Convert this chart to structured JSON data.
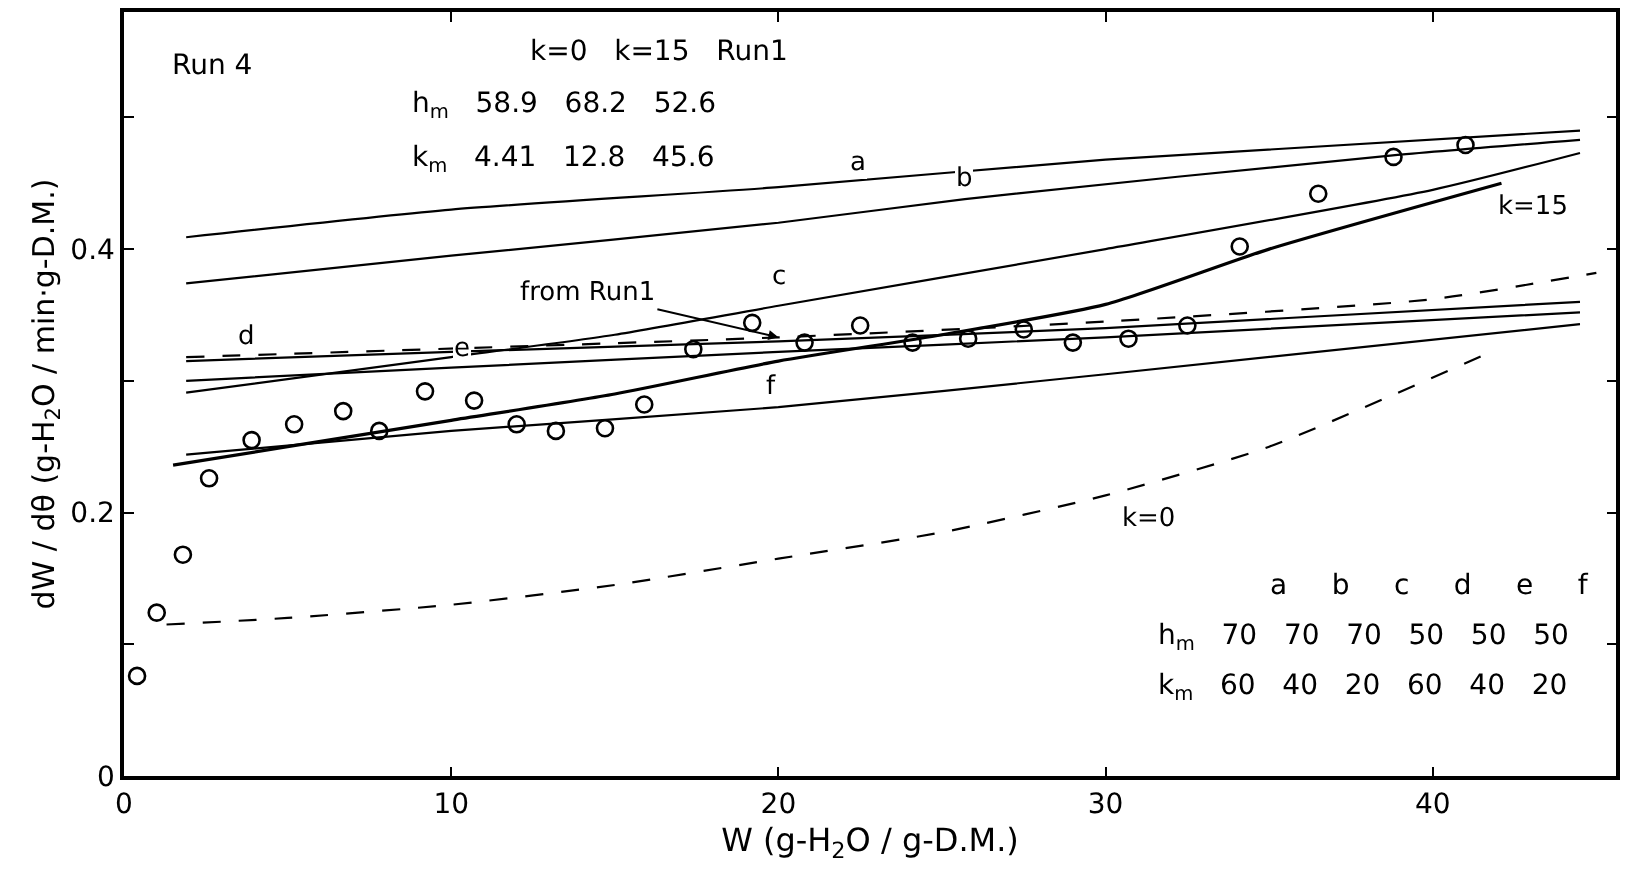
{
  "chart_data": {
    "type": "line",
    "xlabel": "W (g-H$_{2}$O / g-D.M.)",
    "ylabel": "dW / dθ (g-H$_{2}$O / min·g-D.M.)",
    "xlim": [
      0,
      45.6
    ],
    "ylim": [
      0,
      0.58
    ],
    "xticks": [
      0,
      10,
      20,
      30,
      40
    ],
    "yticks": [
      0,
      {
        "value": 0.1,
        "label": null
      },
      0.2,
      {
        "value": 0.3,
        "label": null
      },
      0.4,
      {
        "value": 0.5,
        "label": null
      }
    ],
    "legend": false,
    "series": [
      {
        "name": "a",
        "color": "#000000",
        "line_style": "solid",
        "marker": "none",
        "x": [
          1.9,
          10,
          20,
          30,
          44.5
        ],
        "values": [
          0.409,
          0.43,
          0.447,
          0.468,
          0.49
        ]
      },
      {
        "name": "b",
        "color": "#000000",
        "line_style": "solid",
        "marker": "none",
        "x": [
          1.9,
          10,
          20,
          25.7,
          38.7,
          44.5
        ],
        "values": [
          0.374,
          0.395,
          0.42,
          0.438,
          0.471,
          0.483
        ]
      },
      {
        "name": "c",
        "color": "#000000",
        "line_style": "solid",
        "marker": "none",
        "x": [
          1.9,
          10,
          15,
          20,
          30,
          40,
          44.5
        ],
        "values": [
          0.291,
          0.318,
          0.335,
          0.357,
          0.4,
          0.445,
          0.473
        ]
      },
      {
        "name": "d",
        "color": "#000000",
        "line_style": "solid",
        "marker": "none",
        "x": [
          1.9,
          10,
          20,
          30,
          44.5
        ],
        "values": [
          0.315,
          0.322,
          0.33,
          0.34,
          0.36
        ]
      },
      {
        "name": "e",
        "color": "#000000",
        "line_style": "solid",
        "marker": "none",
        "x": [
          1.9,
          10,
          20,
          30,
          44.5
        ],
        "values": [
          0.3,
          0.31,
          0.322,
          0.333,
          0.352
        ]
      },
      {
        "name": "f",
        "color": "#000000",
        "line_style": "solid",
        "marker": "none",
        "x": [
          1.9,
          10,
          20,
          30,
          44.5
        ],
        "values": [
          0.244,
          0.262,
          0.28,
          0.305,
          0.343
        ]
      },
      {
        "name": "k=15",
        "color": "#000000",
        "line_style": "solid",
        "marker": "none",
        "x": [
          1.5,
          5,
          10,
          15,
          20,
          25,
          30,
          35,
          42.1
        ],
        "values": [
          0.236,
          0.25,
          0.27,
          0.29,
          0.315,
          0.335,
          0.358,
          0.4,
          0.45
        ]
      },
      {
        "name": "k=0",
        "color": "#000000",
        "line_style": "dashed",
        "marker": "none",
        "x": [
          1.3,
          5,
          10,
          15,
          20,
          25,
          30,
          35,
          41.6
        ],
        "values": [
          0.115,
          0.12,
          0.13,
          0.145,
          0.165,
          0.185,
          0.213,
          0.25,
          0.32
        ]
      },
      {
        "name": "from Run1",
        "color": "#000000",
        "line_style": "dashed",
        "marker": "none",
        "x": [
          1.9,
          20,
          30,
          40,
          45
        ],
        "values": [
          0.318,
          0.333,
          0.345,
          0.362,
          0.382
        ]
      },
      {
        "type": "scatter",
        "color": "#000000",
        "marker": "circle",
        "x": [
          0.4,
          1.0,
          1.8,
          2.6,
          3.9,
          5.2,
          6.7,
          7.8,
          9.2,
          10.7,
          12.0,
          13.2,
          14.7,
          15.9,
          17.4,
          19.2,
          20.8,
          22.5,
          24.1,
          25.8,
          27.5,
          29.0,
          30.7,
          32.5,
          34.1,
          36.5,
          38.8,
          41.0
        ],
        "values": [
          0.076,
          0.124,
          0.168,
          0.226,
          0.255,
          0.267,
          0.277,
          0.262,
          0.292,
          0.285,
          0.267,
          0.262,
          0.264,
          0.282,
          0.324,
          0.344,
          0.329,
          0.342,
          0.329,
          0.332,
          0.339,
          0.329,
          0.332,
          0.342,
          0.402,
          0.442,
          0.47,
          0.479
        ]
      }
    ],
    "annotations": [
      "Run 4",
      "k=0   k=15   Run1",
      "h$_{m}$   58.9   68.2   52.6",
      "k$_{m}$   4.41   12.8   45.6",
      "a     b     c     d     e     f",
      "h$_{m}$   70   70   70   50   50   50",
      "k$_{m}$   60   40   20   60   40   20"
    ]
  }
}
